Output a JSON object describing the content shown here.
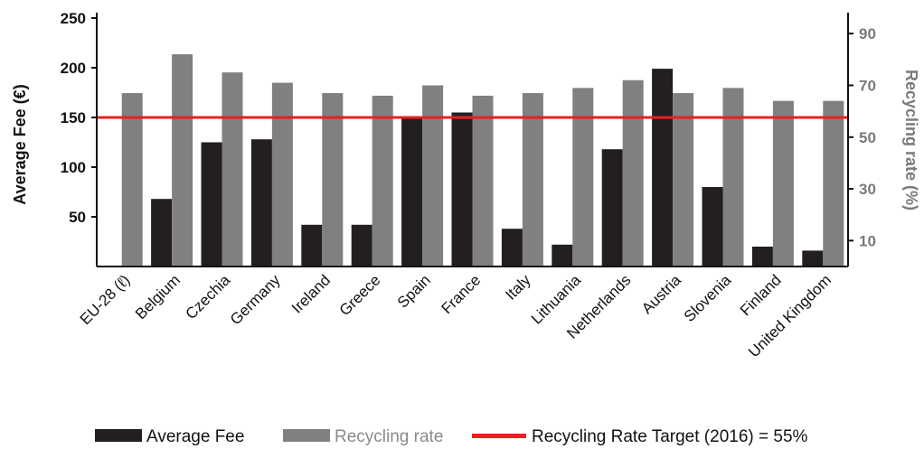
{
  "chart_data": {
    "type": "bar",
    "categories": [
      "EU-28 (ℓ)",
      "Belgium",
      "Czechia",
      "Germany",
      "Ireland",
      "Greece",
      "Spain",
      "France",
      "Italy",
      "Lithuania",
      "Netherlands",
      "Austria",
      "Slovenia",
      "Finland",
      "United Kingdom"
    ],
    "series": [
      {
        "name": "Average Fee",
        "axis": "left",
        "color": "#231f20",
        "values": [
          null,
          68,
          125,
          128,
          42,
          42,
          151,
          155,
          38,
          22,
          118,
          199,
          80,
          20,
          16
        ]
      },
      {
        "name": "Recycling rate",
        "axis": "right",
        "color": "#808080",
        "values": [
          67,
          82,
          75,
          71,
          67,
          66,
          70,
          66,
          67,
          69,
          72,
          67,
          69,
          64,
          64
        ]
      }
    ],
    "reference_line": {
      "label": "Recycling Rate Target (2016) = 55%",
      "value_left_axis": 150,
      "color": "#e8201f"
    },
    "y_left": {
      "label": "Average Fee (€)",
      "ticks": [
        50,
        100,
        150,
        200,
        250
      ],
      "ylim": [
        0,
        250
      ]
    },
    "y_right": {
      "label": "Recycling rate (%)",
      "ticks": [
        10,
        30,
        50,
        70,
        90
      ],
      "ylim": [
        0,
        96
      ]
    },
    "grid": false,
    "legend_position": "bottom"
  },
  "legend": {
    "fee_label": "Average Fee",
    "rate_label": "Recycling rate",
    "target_label": "Recycling Rate Target (2016) = 55%"
  }
}
